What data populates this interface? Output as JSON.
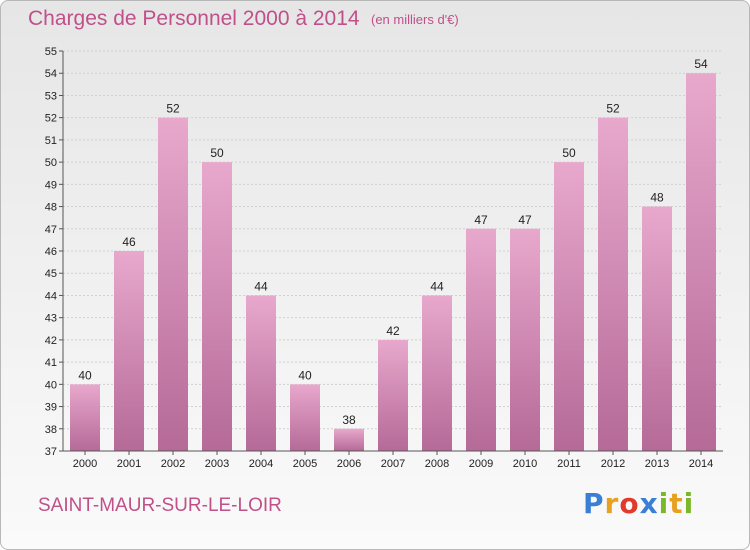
{
  "title": "Charges de Personnel 2000 à 2014",
  "subtitle": "(en milliers d'€)",
  "commune": "SAINT-MAUR-SUR-LE-LOIR",
  "logo": {
    "letters": [
      {
        "char": "P",
        "color": "#3a7fd5"
      },
      {
        "char": "r",
        "color": "#e8a020"
      },
      {
        "char": "o",
        "color": "#e23a2a"
      },
      {
        "char": "x",
        "color": "#3a7fd5"
      },
      {
        "char": "i",
        "color": "#7ab828"
      },
      {
        "char": "t",
        "color": "#e8a020"
      },
      {
        "char": "i",
        "color": "#7ab828"
      }
    ]
  },
  "chart_data": {
    "type": "bar",
    "categories": [
      "2000",
      "2001",
      "2002",
      "2003",
      "2004",
      "2005",
      "2006",
      "2007",
      "2008",
      "2009",
      "2010",
      "2011",
      "2012",
      "2013",
      "2014"
    ],
    "values": [
      40,
      46,
      52,
      50,
      44,
      40,
      38,
      42,
      44,
      47,
      47,
      50,
      52,
      48,
      54
    ],
    "data_labels": [
      "40",
      "46",
      "52",
      "50",
      "44",
      "40",
      "38",
      "42",
      "44",
      "47",
      "47",
      "50",
      "52",
      "48",
      "54"
    ],
    "ylim": [
      37,
      55
    ],
    "yticks": [
      "37",
      "38",
      "39",
      "40",
      "41",
      "42",
      "43",
      "44",
      "45",
      "46",
      "47",
      "48",
      "49",
      "50",
      "51",
      "52",
      "53",
      "54",
      "55"
    ],
    "grid": true,
    "bar_color_top": "#e8a8cc",
    "bar_color_bottom": "#b56a98"
  }
}
